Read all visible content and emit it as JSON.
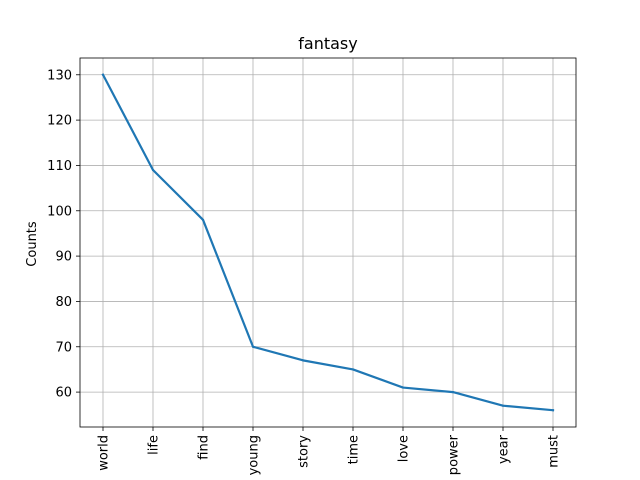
{
  "chart_data": {
    "type": "line",
    "title": "fantasy",
    "xlabel": "",
    "ylabel": "Counts",
    "categories": [
      "world",
      "life",
      "find",
      "young",
      "story",
      "time",
      "love",
      "power",
      "year",
      "must"
    ],
    "values": [
      130,
      109,
      98,
      70,
      67,
      65,
      61,
      60,
      57,
      56
    ],
    "yticks": [
      60,
      70,
      80,
      90,
      100,
      110,
      120,
      130
    ],
    "ylim": [
      52.3,
      133.7
    ],
    "grid": true,
    "line_color": "#1f77b4"
  }
}
